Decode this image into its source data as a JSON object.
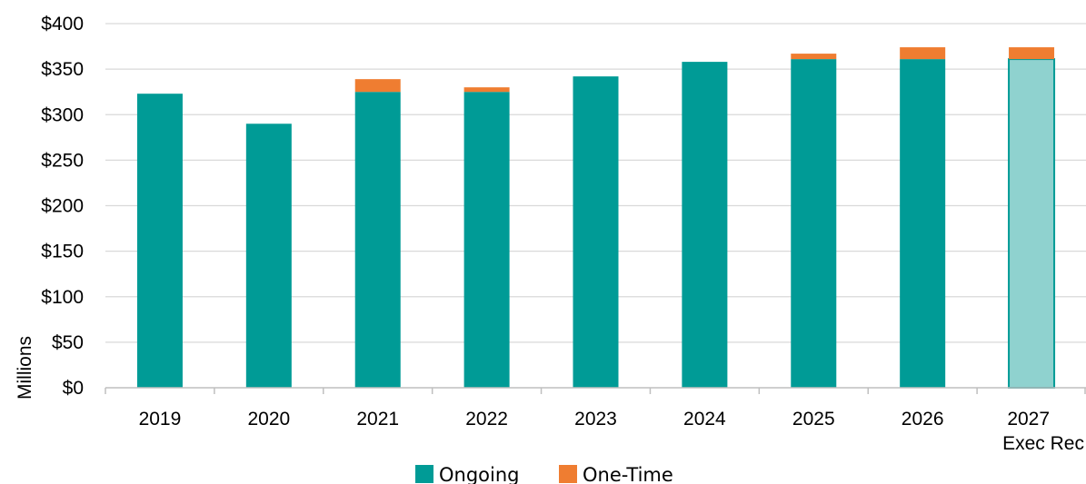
{
  "chart_data": {
    "type": "bar",
    "stacked": true,
    "categories": [
      "2019",
      "2020",
      "2021",
      "2022",
      "2023",
      "2024",
      "2025",
      "2026",
      "2027\nExec Rec"
    ],
    "series": [
      {
        "name": "Ongoing",
        "color": "#009b96",
        "values": [
          323,
          290,
          325,
          325,
          342,
          358,
          361,
          361,
          361
        ]
      },
      {
        "name": "One-Time",
        "color": "#ef7d31",
        "values": [
          0,
          0,
          14,
          5,
          0,
          0,
          6,
          13,
          13
        ]
      }
    ],
    "highlight": {
      "category_index": 8,
      "fill_color": "#8fd2cf",
      "border_color": "#009b96"
    },
    "ylabel": "Millions",
    "ylim": [
      0,
      400
    ],
    "y_ticks": [
      0,
      50,
      100,
      150,
      200,
      250,
      300,
      350,
      400
    ],
    "y_tick_labels": [
      "$0",
      "$50",
      "$100",
      "$150",
      "$200",
      "$250",
      "$300",
      "$350",
      "$400"
    ],
    "grid": true,
    "legend_position": "bottom-center",
    "colors": {
      "grid": "#d9d9d9",
      "axis": "#bfbfbf"
    }
  }
}
